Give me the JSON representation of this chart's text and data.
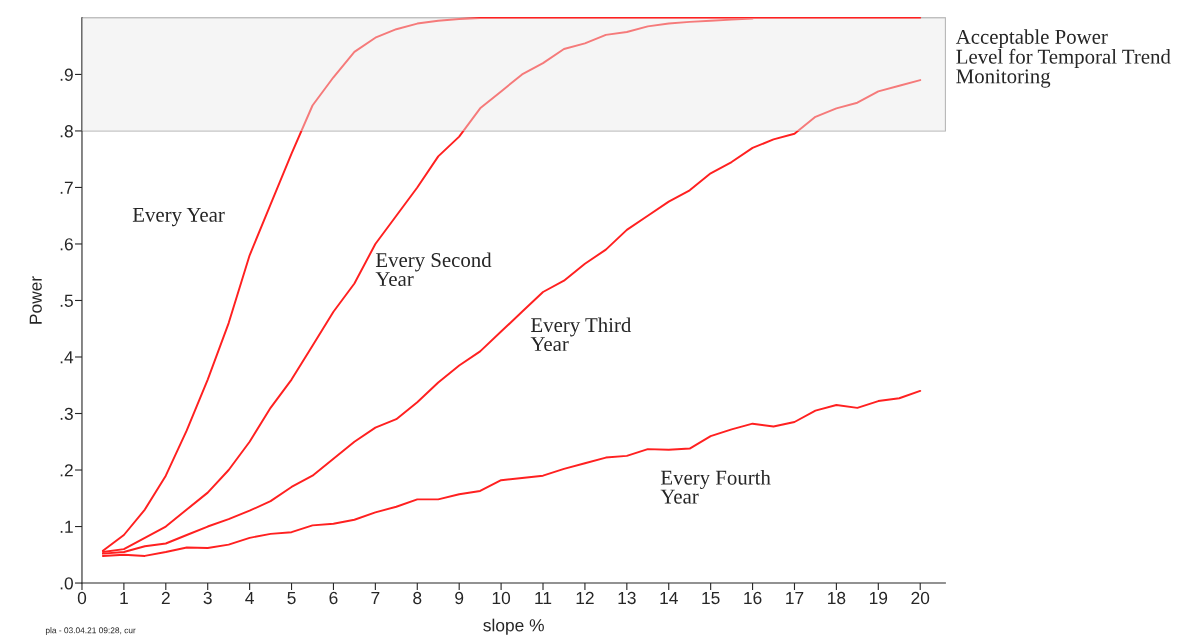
{
  "chart_data": {
    "type": "line",
    "xlabel": "slope %",
    "ylabel": "Power",
    "x": [
      0.5,
      1,
      1.5,
      2,
      2.5,
      3,
      3.5,
      4,
      4.5,
      5,
      5.5,
      6,
      6.5,
      7,
      7.5,
      8,
      8.5,
      9,
      9.5,
      10,
      10.5,
      11,
      11.5,
      12,
      12.5,
      13,
      13.5,
      14,
      14.5,
      15,
      15.5,
      16,
      16.5,
      17,
      17.5,
      18,
      18.5,
      19,
      19.5,
      20
    ],
    "series": [
      {
        "name": "Every Year",
        "color": "#ff2020",
        "values": [
          0.057,
          0.085,
          0.13,
          0.19,
          0.27,
          0.36,
          0.46,
          0.58,
          0.67,
          0.76,
          0.845,
          0.895,
          0.94,
          0.965,
          0.98,
          0.99,
          0.995,
          0.998,
          1.0,
          1.0,
          1.0,
          1.0,
          1.0,
          1.0,
          1.0,
          1.0,
          1.0,
          1.0,
          1.0,
          1.0,
          1.0,
          1.0,
          1.0,
          1.0,
          1.0,
          1.0,
          1.0,
          1.0,
          1.0,
          1.0
        ]
      },
      {
        "name": "Every Second Year",
        "color": "#ff2020",
        "values": [
          0.055,
          0.06,
          0.08,
          0.1,
          0.13,
          0.16,
          0.2,
          0.25,
          0.31,
          0.36,
          0.42,
          0.48,
          0.53,
          0.6,
          0.65,
          0.7,
          0.755,
          0.79,
          0.84,
          0.87,
          0.9,
          0.92,
          0.945,
          0.955,
          0.97,
          0.975,
          0.985,
          0.99,
          0.993,
          0.995,
          0.997,
          0.999,
          null,
          null,
          null,
          null,
          null,
          null,
          null,
          null
        ]
      },
      {
        "name": "Every Third Year",
        "color": "#ff2020",
        "values": [
          0.052,
          0.055,
          0.065,
          0.07,
          0.085,
          0.1,
          0.113,
          0.128,
          0.145,
          0.17,
          0.19,
          0.22,
          0.25,
          0.275,
          0.29,
          0.32,
          0.355,
          0.385,
          0.41,
          0.445,
          0.48,
          0.515,
          0.535,
          0.565,
          0.59,
          0.625,
          0.65,
          0.675,
          0.695,
          0.725,
          0.745,
          0.77,
          0.785,
          0.795,
          0.825,
          0.84,
          0.85,
          0.87,
          0.88,
          0.89
        ]
      },
      {
        "name": "Every Fourth Year",
        "color": "#ff2020",
        "values": [
          0.048,
          0.05,
          0.048,
          0.055,
          0.063,
          0.062,
          0.068,
          0.08,
          0.087,
          0.09,
          0.102,
          0.105,
          0.112,
          0.125,
          0.135,
          0.148,
          0.148,
          0.157,
          0.163,
          0.182,
          0.186,
          0.19,
          0.202,
          0.212,
          0.222,
          0.225,
          0.237,
          0.236,
          0.238,
          0.26,
          0.272,
          0.282,
          0.277,
          0.285,
          0.305,
          0.315,
          0.31,
          0.322,
          0.327,
          0.34
        ]
      }
    ],
    "xlim": [
      0,
      20.6
    ],
    "xticks": [
      0,
      1,
      2,
      3,
      4,
      5,
      6,
      7,
      8,
      9,
      10,
      11,
      12,
      13,
      14,
      15,
      16,
      17,
      18,
      19,
      20
    ],
    "ylim": [
      0,
      1.0
    ],
    "yticks": [
      {
        "value": 0,
        "label": ".0"
      },
      {
        "value": 0.1,
        "label": ".1"
      },
      {
        "value": 0.2,
        "label": ".2"
      },
      {
        "value": 0.3,
        "label": ".3"
      },
      {
        "value": 0.4,
        "label": ".4"
      },
      {
        "value": 0.5,
        "label": ".5"
      },
      {
        "value": 0.6,
        "label": ".6"
      },
      {
        "value": 0.7,
        "label": ".7"
      },
      {
        "value": 0.8,
        "label": ".8"
      },
      {
        "value": 0.9,
        "label": ".9"
      }
    ],
    "bands": [
      {
        "axis": "y",
        "from": 0.8,
        "to": 1.0,
        "label": "Acceptable Power\nLevel for Temporal Trend\nMonitoring",
        "color": "#e8e8e8"
      }
    ],
    "annotations": [
      "pla - 03.04.21 09:28, cur"
    ],
    "grid": false,
    "legend": false,
    "marker": "none",
    "line_style": "solid"
  }
}
